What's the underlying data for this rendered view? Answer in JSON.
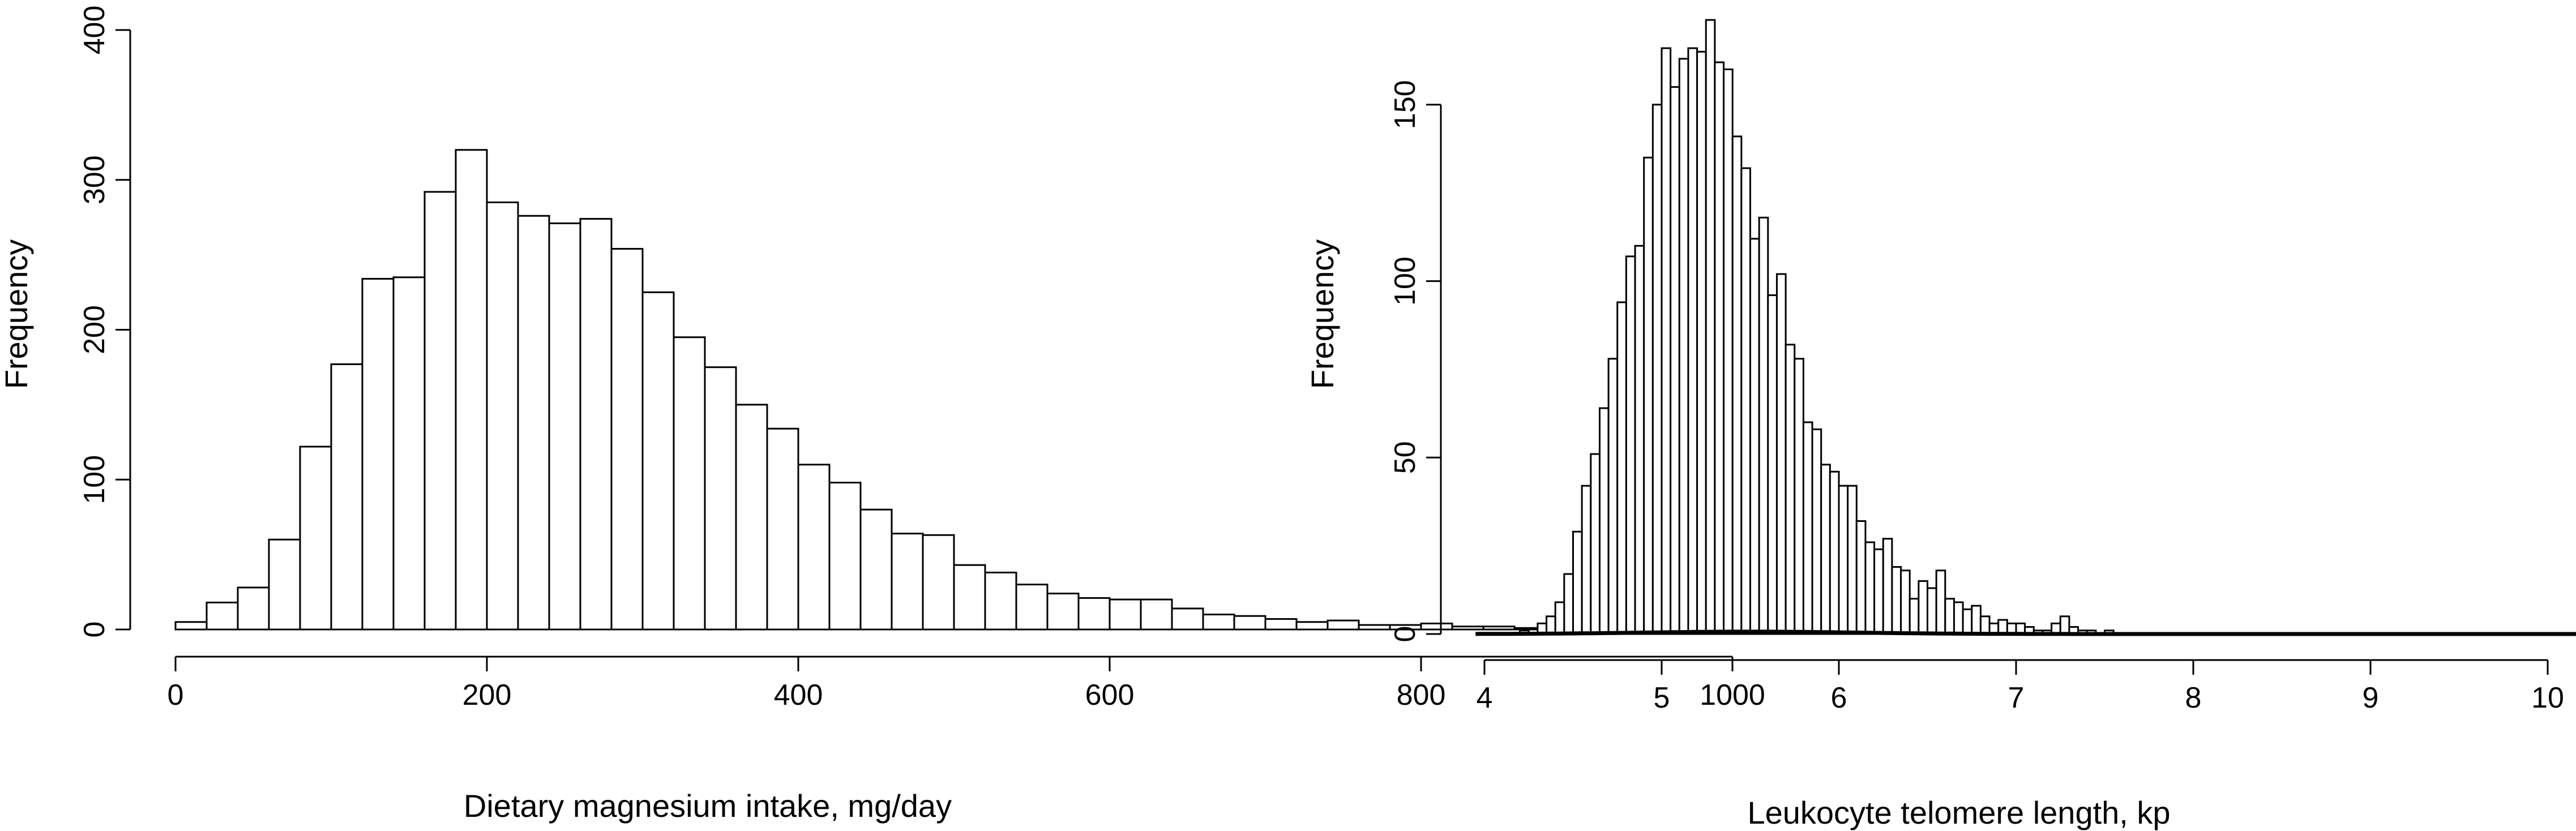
{
  "chart_data": [
    {
      "type": "histogram",
      "xlabel": "Dietary magnesium intake, mg/day",
      "ylabel": "Frequency",
      "xlim": [
        0,
        1050
      ],
      "ylim": [
        0,
        400
      ],
      "x_ticks": [
        0,
        200,
        400,
        600,
        800,
        1000
      ],
      "y_ticks": [
        0,
        100,
        200,
        300,
        400
      ],
      "bin_width": 20,
      "bin_start": 0,
      "values": [
        5,
        18,
        28,
        60,
        122,
        177,
        234,
        235,
        292,
        320,
        285,
        276,
        271,
        274,
        254,
        225,
        195,
        175,
        150,
        134,
        110,
        98,
        80,
        64,
        63,
        43,
        38,
        30,
        24,
        21,
        20,
        20,
        14,
        10,
        9,
        7,
        5,
        6,
        3,
        3,
        4,
        2,
        2,
        1,
        3,
        1,
        3,
        2,
        1,
        0,
        0,
        3,
        0
      ]
    },
    {
      "type": "histogram",
      "xlabel": "Leukocyte telomere length, kp",
      "ylabel": "Frequency",
      "xlim": [
        4,
        10
      ],
      "ylim": [
        0,
        175
      ],
      "x_ticks": [
        4,
        5,
        6,
        7,
        8,
        9,
        10
      ],
      "y_ticks": [
        0,
        50,
        100,
        150
      ],
      "bin_width": 0.05,
      "bin_start": 4.2,
      "values": [
        1,
        0,
        3,
        5,
        9,
        17,
        29,
        42,
        51,
        64,
        78,
        94,
        107,
        110,
        135,
        150,
        166,
        155,
        163,
        166,
        165,
        174,
        162,
        160,
        141,
        132,
        112,
        118,
        96,
        102,
        82,
        78,
        60,
        58,
        48,
        46,
        42,
        42,
        32,
        26,
        24,
        27,
        19,
        18,
        10,
        15,
        13,
        18,
        10,
        9,
        7,
        8,
        5,
        3,
        4,
        3,
        3,
        2,
        1,
        1,
        3,
        5,
        2,
        1,
        1,
        0,
        1
      ]
    }
  ]
}
